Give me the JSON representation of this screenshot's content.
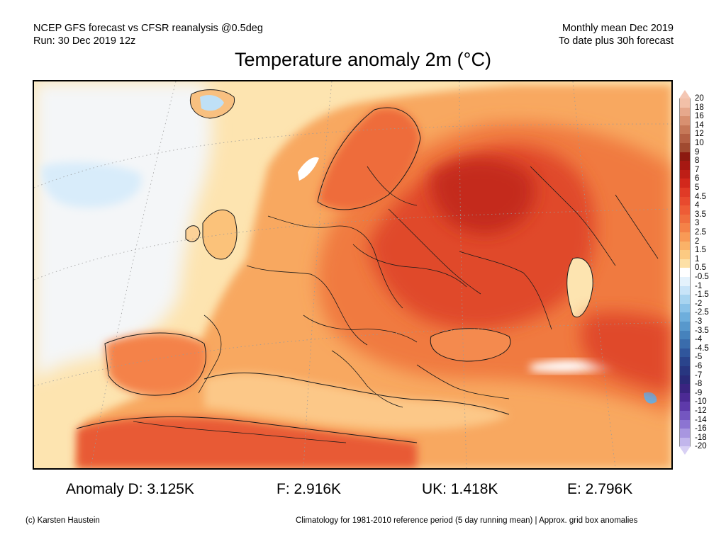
{
  "header": {
    "line1_left": "NCEP GFS forecast vs CFSR reanalysis @0.5deg",
    "line2_left": "Run: 30 Dec 2019 12z",
    "line1_right": "Monthly mean Dec 2019",
    "line2_right": "To date plus 30h forecast"
  },
  "title": "Temperature anomaly 2m (°C)",
  "colorbar": {
    "max_arrow_color": "#f4c7b4",
    "min_arrow_color": "#d8d0f4",
    "levels": [
      {
        "label": "20",
        "color": "#f2c0a8"
      },
      {
        "label": "18",
        "color": "#e6a88c"
      },
      {
        "label": "16",
        "color": "#d89070"
      },
      {
        "label": "14",
        "color": "#c67858"
      },
      {
        "label": "12",
        "color": "#b46044"
      },
      {
        "label": "10",
        "color": "#a04a30"
      },
      {
        "label": "9",
        "color": "#8c1a10"
      },
      {
        "label": "8",
        "color": "#a61812"
      },
      {
        "label": "7",
        "color": "#be1e16"
      },
      {
        "label": "6",
        "color": "#d2281c"
      },
      {
        "label": "5",
        "color": "#e03a26"
      },
      {
        "label": "4.5",
        "color": "#e84a2e"
      },
      {
        "label": "4",
        "color": "#ee5c36"
      },
      {
        "label": "3.5",
        "color": "#f06e3e"
      },
      {
        "label": "3",
        "color": "#f48248"
      },
      {
        "label": "2.5",
        "color": "#f89a56"
      },
      {
        "label": "2",
        "color": "#fab268"
      },
      {
        "label": "1.5",
        "color": "#fcca82"
      },
      {
        "label": "1",
        "color": "#fde0a6"
      },
      {
        "label": "0.5",
        "color": "#ffffff"
      },
      {
        "label": "-0.5",
        "color": "#e4f2fc"
      },
      {
        "label": "-1",
        "color": "#c8e4f8"
      },
      {
        "label": "-1.5",
        "color": "#a8d4f0"
      },
      {
        "label": "-2",
        "color": "#8ac2e8"
      },
      {
        "label": "-2.5",
        "color": "#6eaedc"
      },
      {
        "label": "-3",
        "color": "#5898cc"
      },
      {
        "label": "-3.5",
        "color": "#4682bc"
      },
      {
        "label": "-4",
        "color": "#3a6cac"
      },
      {
        "label": "-4.5",
        "color": "#30569c"
      },
      {
        "label": "-5",
        "color": "#2a448c"
      },
      {
        "label": "-6",
        "color": "#283680"
      },
      {
        "label": "-7",
        "color": "#2a2a78"
      },
      {
        "label": "-8",
        "color": "#3a2480"
      },
      {
        "label": "-9",
        "color": "#4c2a94"
      },
      {
        "label": "-10",
        "color": "#5e3aaa"
      },
      {
        "label": "-12",
        "color": "#7456c0"
      },
      {
        "label": "-14",
        "color": "#8c74d2"
      },
      {
        "label": "-16",
        "color": "#a896e0"
      },
      {
        "label": "-18",
        "color": "#c2b6ec"
      },
      {
        "label": "-20",
        "color": ""
      }
    ]
  },
  "stats": {
    "d": "Anomaly D: 3.125K",
    "f": "F: 2.916K",
    "uk": "UK: 1.418K",
    "e": "E: 2.796K"
  },
  "footer": {
    "credit": "(c) Karsten Haustein",
    "note": "Climatology for 1981-2010 reference period (5 day running mean) | Approx. grid box anomalies"
  },
  "map_colors": {
    "ocean_neutral": "#fde4b0",
    "atlantic_cool": "#f4f6f8",
    "iceland_blue": "#bfe0f6",
    "land_warm": "#f8a860",
    "warm": "#f07a40",
    "hot": "#e04a2a",
    "hottest": "#c42a1c",
    "border": "#1a1a1a"
  }
}
